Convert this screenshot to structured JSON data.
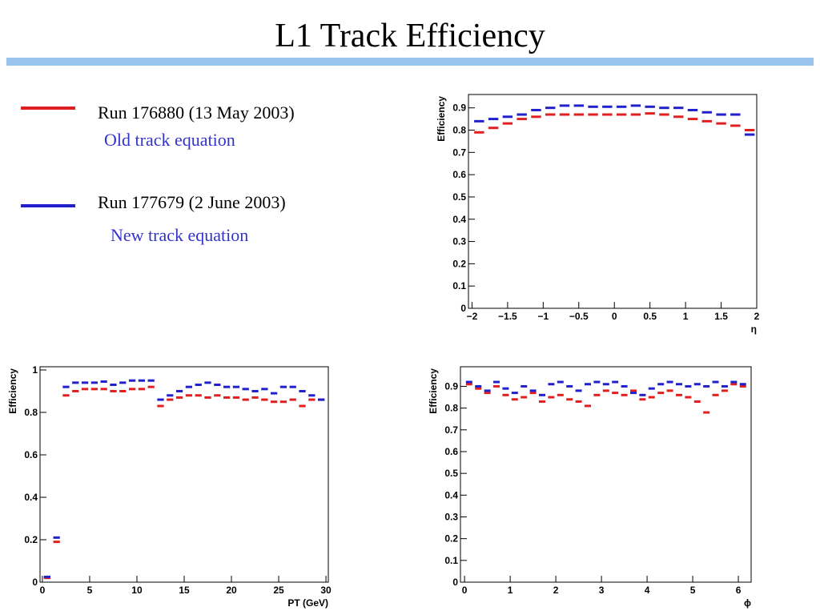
{
  "slide": {
    "title": "L1 Track Efficiency"
  },
  "legend": [
    {
      "label": "Run 176880 (13 May 2003)",
      "note": "Old track equation",
      "color": "#e02020"
    },
    {
      "label": "Run 177679 (2 June 2003)",
      "note": "New track equation",
      "color": "#2020cc"
    }
  ],
  "chart_data": [
    {
      "type": "histogram",
      "x_label": "η",
      "y_label": "Efficiency",
      "bins": [
        -2,
        -1.8,
        -1.6,
        -1.4,
        -1.2,
        -1,
        -0.8,
        -0.6,
        -0.4,
        -0.2,
        0,
        0.2,
        0.4,
        0.6,
        0.8,
        1,
        1.2,
        1.4,
        1.6,
        1.8,
        2
      ],
      "xlim": [
        -2.05,
        2.0
      ],
      "ylim": [
        0,
        0.96
      ],
      "xticks": [
        {
          "value": -2,
          "label": "−2"
        },
        {
          "value": -1.5,
          "label": "−1.5"
        },
        {
          "value": -1,
          "label": "−1"
        },
        {
          "value": -0.5,
          "label": "−0.5"
        },
        0,
        0.5,
        1,
        1.5,
        2
      ],
      "yticks": [
        0,
        0.1,
        0.2,
        0.3,
        0.4,
        0.5,
        0.6,
        0.7,
        0.8,
        0.9
      ],
      "series": [
        {
          "color": "#e02020",
          "values": [
            0.79,
            0.81,
            0.83,
            0.85,
            0.86,
            0.87,
            0.87,
            0.87,
            0.87,
            0.87,
            0.87,
            0.87,
            0.875,
            0.87,
            0.86,
            0.85,
            0.84,
            0.83,
            0.82,
            0.8
          ]
        },
        {
          "color": "#2020cc",
          "values": [
            0.84,
            0.85,
            0.86,
            0.87,
            0.89,
            0.9,
            0.91,
            0.91,
            0.905,
            0.905,
            0.905,
            0.91,
            0.905,
            0.9,
            0.9,
            0.89,
            0.88,
            0.87,
            0.87,
            0.78
          ]
        }
      ]
    },
    {
      "type": "histogram",
      "x_label": "PT (GeV)",
      "y_label": "Efficiency",
      "bins": [
        0,
        1,
        2,
        3,
        4,
        5,
        6,
        7,
        8,
        9,
        10,
        11,
        12,
        13,
        14,
        15,
        16,
        17,
        18,
        19,
        20,
        21,
        22,
        23,
        24,
        25,
        26,
        27,
        28,
        29,
        30
      ],
      "xlim": [
        -0.25,
        30.25
      ],
      "ylim": [
        0,
        1.015
      ],
      "xticks": [
        0,
        5,
        10,
        15,
        20,
        25,
        30
      ],
      "yticks": [
        0,
        0.2,
        0.4,
        0.6,
        0.8,
        1
      ],
      "series": [
        {
          "color": "#e02020",
          "values": [
            0.02,
            0.19,
            0.88,
            0.9,
            0.91,
            0.91,
            0.91,
            0.9,
            0.9,
            0.91,
            0.91,
            0.92,
            0.83,
            0.86,
            0.87,
            0.88,
            0.88,
            0.87,
            0.88,
            0.87,
            0.87,
            0.86,
            0.87,
            0.86,
            0.85,
            0.85,
            0.86,
            0.83,
            0.86,
            0.86
          ]
        },
        {
          "color": "#2020cc",
          "values": [
            0.025,
            0.21,
            0.92,
            0.94,
            0.94,
            0.94,
            0.945,
            0.93,
            0.94,
            0.95,
            0.95,
            0.95,
            0.86,
            0.88,
            0.9,
            0.92,
            0.93,
            0.94,
            0.93,
            0.92,
            0.92,
            0.91,
            0.9,
            0.91,
            0.89,
            0.92,
            0.92,
            0.9,
            0.88,
            0.86
          ]
        }
      ]
    },
    {
      "type": "histogram",
      "x_label": "ϕ",
      "y_label": "Efficiency",
      "bins": [
        0,
        0.2,
        0.4,
        0.6,
        0.8,
        1,
        1.2,
        1.4,
        1.6,
        1.8,
        2,
        2.2,
        2.4,
        2.6,
        2.8,
        3,
        3.2,
        3.4,
        3.6,
        3.8,
        4,
        4.2,
        4.4,
        4.6,
        4.8,
        5,
        5.2,
        5.4,
        5.6,
        5.8,
        6,
        6.2
      ],
      "xlim": [
        -0.09,
        6.28
      ],
      "ylim": [
        0,
        0.99
      ],
      "xticks": [
        0,
        1,
        2,
        3,
        4,
        5,
        6
      ],
      "yticks": [
        0,
        0.1,
        0.2,
        0.3,
        0.4,
        0.5,
        0.6,
        0.7,
        0.8,
        0.9
      ],
      "series": [
        {
          "color": "#e02020",
          "values": [
            0.91,
            0.89,
            0.87,
            0.9,
            0.86,
            0.84,
            0.85,
            0.87,
            0.83,
            0.85,
            0.86,
            0.84,
            0.83,
            0.81,
            0.86,
            0.88,
            0.87,
            0.86,
            0.88,
            0.84,
            0.85,
            0.87,
            0.88,
            0.86,
            0.85,
            0.83,
            0.78,
            0.86,
            0.88,
            0.91,
            0.9
          ]
        },
        {
          "color": "#2020cc",
          "values": [
            0.92,
            0.9,
            0.88,
            0.92,
            0.89,
            0.87,
            0.9,
            0.88,
            0.86,
            0.91,
            0.92,
            0.9,
            0.88,
            0.91,
            0.92,
            0.91,
            0.92,
            0.9,
            0.87,
            0.86,
            0.89,
            0.91,
            0.92,
            0.91,
            0.9,
            0.91,
            0.9,
            0.92,
            0.9,
            0.92,
            0.91
          ]
        }
      ]
    }
  ]
}
